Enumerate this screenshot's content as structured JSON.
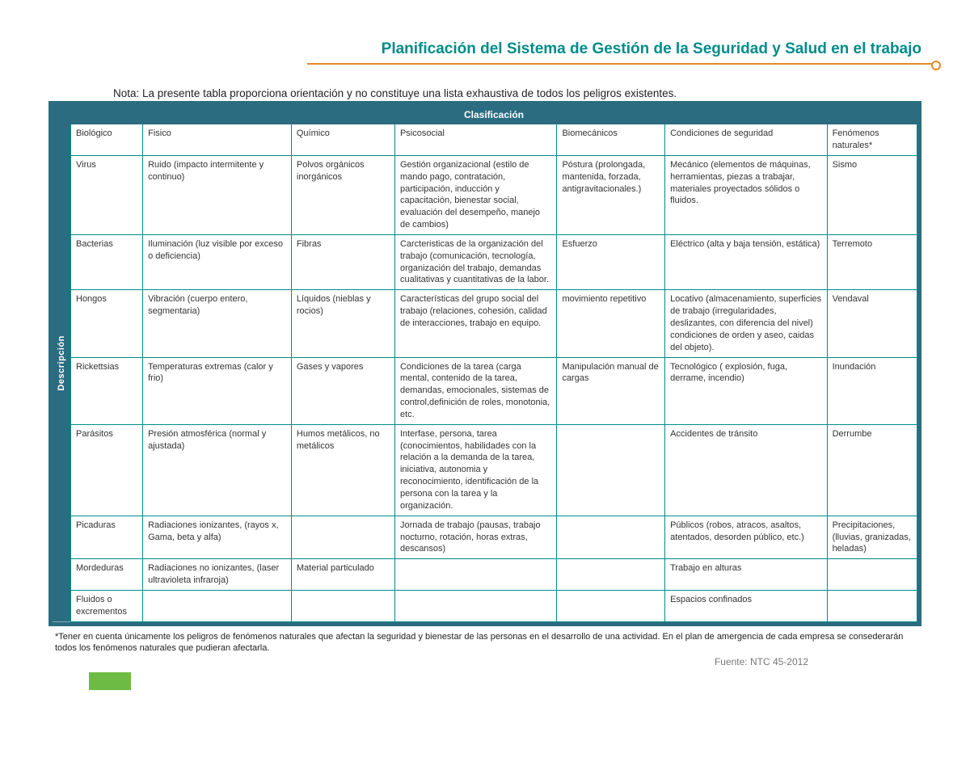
{
  "colors": {
    "teal_dark": "#2b6c80",
    "teal_border": "#008b8b",
    "orange_accent": "#e58a2a",
    "green_box": "#6dbb45",
    "text": "#333333",
    "text_muted": "#777777",
    "bg": "#ffffff"
  },
  "title": "Planificación del Sistema de Gestión de la Seguridad y Salud en el trabajo",
  "note": "Nota: La presente tabla proporciona orientación y no constituye una lista exhaustiva de todos los peligros existentes.",
  "top_header": "Clasificación",
  "side_label": "Descripción",
  "table": {
    "columns": [
      "Biológico",
      "Fisico",
      "Químico",
      "Psicosocial",
      "Biomecánicos",
      "Condiciones de seguridad",
      "Fenómenos naturales*"
    ],
    "col_widths_pct": [
      8,
      16.5,
      11.5,
      18,
      12,
      18,
      10
    ],
    "rows": [
      [
        "Virus",
        "Ruido (impacto intermitente y continuo)",
        "Polvos orgánicos inorgánicos",
        "Gestión organizacional (estilo de mando pago, contratación, participación, inducción y capacitación, bienestar social, evaluación del desempeño, manejo de cambios)",
        "Póstura (prolongada, mantenida, forzada, antigravitacionales.)",
        "Mecánico (elementos de máquinas, herramientas, piezas a trabajar, materiales proyectados sólidos o fluidos.",
        "Sismo"
      ],
      [
        "Bacterias",
        "Iluminación (luz visible por exceso o deficiencia)",
        "Fibras",
        "Carcteristicas de la organización del trabajo (comunicación, tecnología, organización del trabajo, demandas cualitativas y cuantitativas de la labor.",
        "Esfuerzo",
        "Eléctrico (alta y baja tensión, estática)",
        "Terremoto"
      ],
      [
        "Hongos",
        "Vibración (cuerpo entero, segmentaria)",
        "Líquidos (nieblas y rocios)",
        "Características del grupo social del trabajo (relaciones, cohesión, calidad de interacciones, trabajo en equipo.",
        "movimiento repetitivo",
        "Locativo (almacenamiento, superficies de trabajo (irregularidades, deslizantes, con diferencia del nivel) condiciones de orden y aseo, caidas del objeto).",
        "Vendaval"
      ],
      [
        "Rickettsias",
        "Temperaturas extremas (calor y frio)",
        "Gases y vapores",
        "Condiciones de la tarea (carga mental, contenido de la tarea, demandas, emocionales, sistemas de control,definición de roles, monotonia, etc.",
        "Manipulación manual de cargas",
        "Tecnológico ( explosión, fuga, derrame, incendio)",
        "Inundación"
      ],
      [
        "Parásitos",
        "Presión atmosférica (normal y ajustada)",
        "Humos metálicos, no metálicos",
        "Interfase, persona, tarea (conocimientos, habilidades con la relación a la demanda de la tarea, iniciativa, autonomia y reconocimiento, identificación de la persona con la tarea y la organización.",
        "",
        "Accidentes de tránsito",
        "Derrumbe"
      ],
      [
        "Picaduras",
        "Radiaciones ionizantes, (rayos x, Gama, beta y alfa)",
        "",
        "Jornada de trabajo (pausas, trabajo nocturno, rotación, horas extras, descansos)",
        "",
        "Públicos (robos, atracos, asaltos, atentados, desorden público, etc.)",
        "Precipitaciones, (lluvias, granizadas, heladas)"
      ],
      [
        "Mordeduras",
        "Radiaciones no ionizantes, (laser ultravioleta infraroja)",
        "Material particulado",
        "",
        "",
        "Trabajo en alturas",
        ""
      ],
      [
        "Fluidos o excrementos",
        "",
        "",
        "",
        "",
        "Espacios confinados",
        ""
      ]
    ]
  },
  "footnote": "*Tener en cuenta únicamente los peligros de fenómenos naturales que afectan la seguridad y bienestar de las personas en el desarrollo de una actividad. En el plan de amergencia de cada empresa se consederarán todos los fenómenos naturales que pudieran afectarla.",
  "source": "Fuente: NTC 45-2012"
}
